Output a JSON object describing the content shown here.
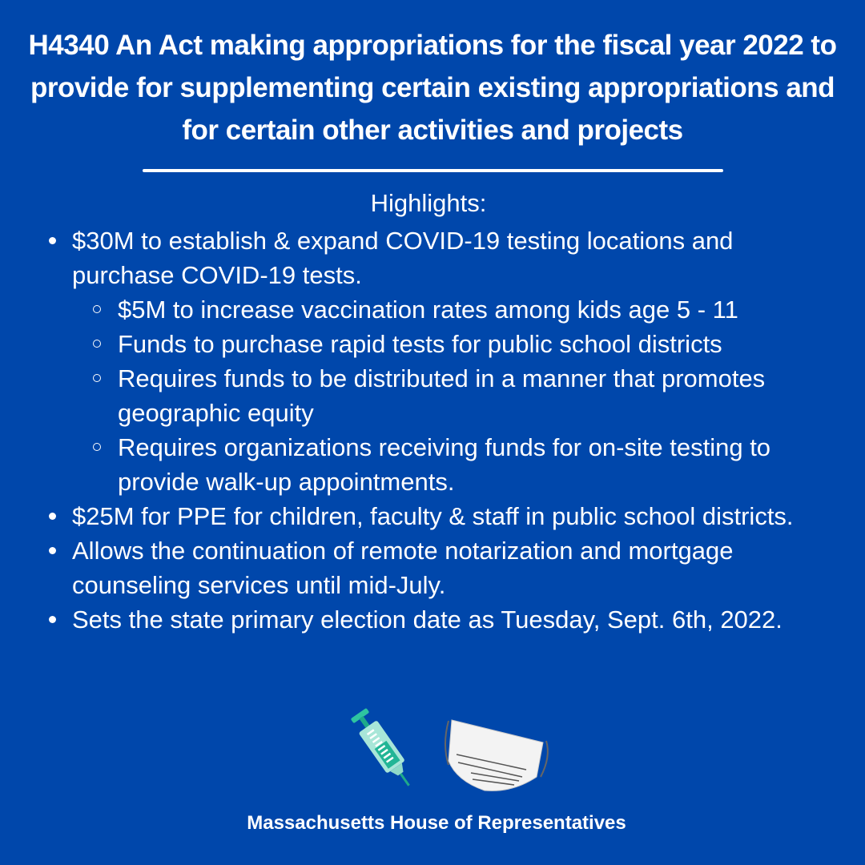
{
  "title": "H4340 An Act making appropriations for the fiscal year 2022 to provide for supplementing certain existing appropriations and for certain other activities and projects",
  "highlights_label": "Highlights:",
  "items": [
    {
      "text": "$30M to establish & expand COVID-19 testing locations and purchase COVID-19 tests.",
      "sub": [
        "$5M to increase vaccination rates among kids age 5 - 11",
        "Funds to purchase rapid tests for public school districts",
        "Requires funds to be distributed in a manner that promotes geographic equity",
        "Requires organizations receiving funds for on-site testing to provide walk-up appointments."
      ]
    },
    {
      "text": "$25M for PPE for children, faculty & staff in public school districts."
    },
    {
      "text": "Allows the continuation of remote notarization and mortgage counseling services until mid-July."
    },
    {
      "text": "Sets the state primary election date as Tuesday, Sept. 6th, 2022."
    }
  ],
  "icons": [
    "syringe-icon",
    "face-mask-icon"
  ],
  "footer": "Massachusetts House of Representatives",
  "colors": {
    "background": "#0047ab",
    "text": "#ffffff"
  }
}
